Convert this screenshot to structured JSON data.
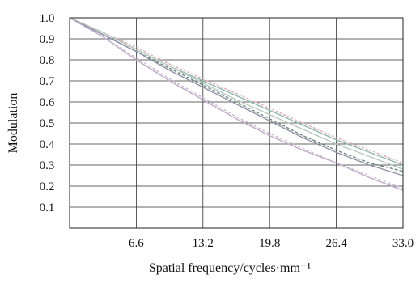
{
  "chart_data": {
    "type": "line",
    "title": "",
    "xlabel": "Spatial frequency/cycles·mm⁻¹",
    "ylabel": "Modulation",
    "xlim": [
      0,
      33.0
    ],
    "ylim": [
      0,
      1.0
    ],
    "grid": true,
    "legend": "none",
    "x_ticks": [
      "6.6",
      "13.2",
      "19.8",
      "26.4",
      "33.0"
    ],
    "y_ticks": [
      "0.1",
      "0.2",
      "0.3",
      "0.4",
      "0.5",
      "0.6",
      "0.7",
      "0.8",
      "0.9",
      "1.0"
    ],
    "x": [
      0,
      3.3,
      6.6,
      9.9,
      13.2,
      16.5,
      19.8,
      23.1,
      26.4,
      29.7,
      33.0
    ],
    "series": [
      {
        "color": "#e0b0b0",
        "dash": "3,2",
        "values": [
          1.0,
          0.93,
          0.86,
          0.78,
          0.71,
          0.64,
          0.57,
          0.5,
          0.43,
          0.37,
          0.31
        ]
      },
      {
        "color": "#8fb8b0",
        "dash": "",
        "values": [
          1.0,
          0.93,
          0.85,
          0.77,
          0.7,
          0.63,
          0.56,
          0.49,
          0.42,
          0.36,
          0.3
        ]
      },
      {
        "color": "#b8c8c0",
        "dash": "",
        "values": [
          1.0,
          0.93,
          0.85,
          0.77,
          0.69,
          0.61,
          0.54,
          0.47,
          0.4,
          0.34,
          0.28
        ]
      },
      {
        "color": "#6a8a80",
        "dash": "4,2",
        "values": [
          1.0,
          0.92,
          0.84,
          0.76,
          0.68,
          0.6,
          0.52,
          0.44,
          0.37,
          0.31,
          0.27
        ]
      },
      {
        "color": "#9090a8",
        "dash": "",
        "values": [
          1.0,
          0.92,
          0.84,
          0.75,
          0.67,
          0.59,
          0.51,
          0.43,
          0.36,
          0.3,
          0.25
        ]
      },
      {
        "color": "#c0a8c8",
        "dash": "",
        "values": [
          1.0,
          0.91,
          0.8,
          0.7,
          0.61,
          0.52,
          0.44,
          0.37,
          0.31,
          0.24,
          0.18
        ]
      },
      {
        "color": "#c8b8d0",
        "dash": "3,3",
        "values": [
          1.0,
          0.91,
          0.81,
          0.71,
          0.62,
          0.53,
          0.45,
          0.38,
          0.31,
          0.25,
          0.19
        ]
      }
    ]
  }
}
